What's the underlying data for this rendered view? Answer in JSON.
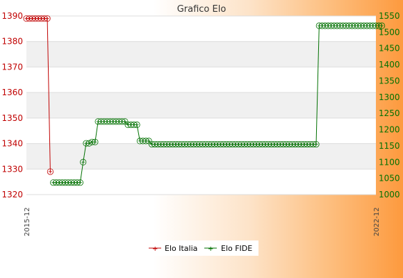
{
  "chart_data": {
    "type": "line",
    "title": "Grafico Elo",
    "y_left": {
      "ylim": [
        1320,
        1390
      ],
      "ticks": [
        1320,
        1330,
        1340,
        1350,
        1360,
        1370,
        1380,
        1390
      ]
    },
    "y_right": {
      "ylim": [
        1000,
        1550
      ],
      "ticks": [
        1000,
        1050,
        1100,
        1150,
        1200,
        1250,
        1300,
        1350,
        1400,
        1450,
        1500,
        1550
      ]
    },
    "x_first_label": "2015-12",
    "x_last_label": "2022-12",
    "n_points": 118,
    "grid": true,
    "legend_position": "bottom-center",
    "series": [
      {
        "name": "Elo Italia",
        "color": "#c00000",
        "axis": "left",
        "values": [
          1389,
          1389,
          1389,
          1389,
          1389,
          1389,
          1389,
          1389,
          1329
        ]
      },
      {
        "name": "Elo FIDE",
        "color": "#007000",
        "axis": "right",
        "values": [
          null,
          null,
          null,
          null,
          null,
          null,
          null,
          null,
          null,
          1037,
          1037,
          1037,
          1037,
          1037,
          1037,
          1037,
          1037,
          1037,
          1037,
          1100,
          1158,
          1158,
          1162,
          1162,
          1225,
          1225,
          1225,
          1225,
          1225,
          1225,
          1225,
          1225,
          1225,
          1225,
          1215,
          1215,
          1215,
          1215,
          1165,
          1165,
          1165,
          1165,
          1155,
          1155,
          1155,
          1155,
          1155,
          1155,
          1155,
          1155,
          1155,
          1155,
          1155,
          1155,
          1155,
          1155,
          1155,
          1155,
          1155,
          1155,
          1155,
          1155,
          1155,
          1155,
          1155,
          1155,
          1155,
          1155,
          1155,
          1155,
          1155,
          1155,
          1155,
          1155,
          1155,
          1155,
          1155,
          1155,
          1155,
          1155,
          1155,
          1155,
          1155,
          1155,
          1155,
          1155,
          1155,
          1155,
          1155,
          1155,
          1155,
          1155,
          1155,
          1155,
          1155,
          1155,
          1155,
          1155,
          1520,
          1520,
          1520,
          1520,
          1520,
          1520,
          1520,
          1520,
          1520,
          1520,
          1520,
          1520,
          1520,
          1520,
          1520,
          1520,
          1520,
          1520,
          1520,
          1520,
          1520,
          1520
        ]
      }
    ]
  }
}
